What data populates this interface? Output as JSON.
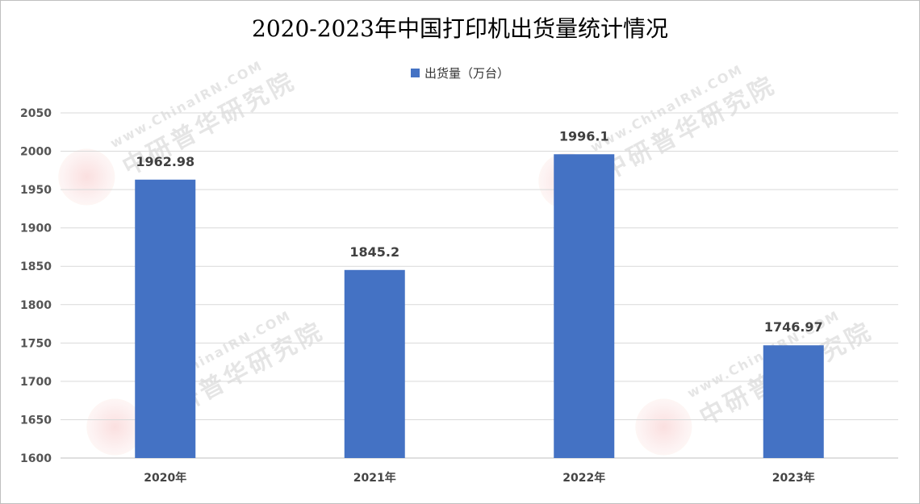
{
  "chart_data": {
    "type": "bar",
    "title": "2020-2023年中国打印机出货量统计情况",
    "categories": [
      "2020年",
      "2021年",
      "2022年",
      "2023年"
    ],
    "series": [
      {
        "name": "出货量（万台）",
        "values": [
          1962.98,
          1845.2,
          1996.1,
          1746.97
        ],
        "color": "#4472C4"
      }
    ],
    "data_labels": [
      "1962.98",
      "1845.2",
      "1996.1",
      "1746.97"
    ],
    "ylim": [
      1600,
      2050
    ],
    "yticks": [
      1600,
      1650,
      1700,
      1750,
      1800,
      1850,
      1900,
      1950,
      2000,
      2050
    ],
    "xlabel": "",
    "ylabel": "",
    "grid": true,
    "legend_position": "top-center"
  },
  "watermark": {
    "brand": "CIRN",
    "url": "www.ChinaIRN.COM",
    "org": "中研普华研究院"
  },
  "colors": {
    "bar": "#4472C4",
    "grid": "#d9d9d9",
    "axis": "#bfbfbf"
  }
}
